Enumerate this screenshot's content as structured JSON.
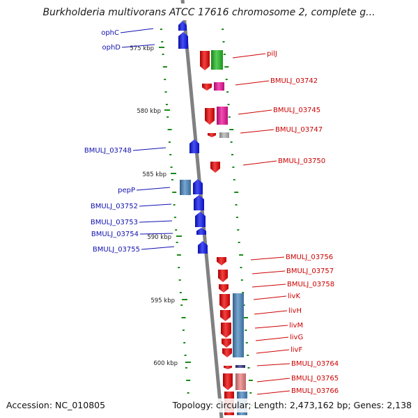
{
  "title": "Burkholderia multivorans ATCC 17616 chromosome 2, complete g...",
  "footer": {
    "accession": "Accession: NC_010805",
    "topology": "Topology: circular; Length: 2,473,162 bp; Genes: 2,138"
  },
  "colors": {
    "backbone": "#808080",
    "tick": "#1a8a1a",
    "left_label": "#1010b0",
    "right_label": "#cc0000",
    "red": "#ee0000",
    "blue": "#0a14ee",
    "green": "#22bb22",
    "pink": "#ee1199",
    "gray": "#b4b4b4",
    "steel": "#4a88c0",
    "lightred": "#ee8080",
    "navy": "#303080"
  },
  "ticks": [
    "575 kbp",
    "580 kbp",
    "585 kbp",
    "590 kbp",
    "595 kbp",
    "600 kbp"
  ],
  "left_genes": [
    {
      "label": "ophC",
      "color": "blue"
    },
    {
      "label": "ophD",
      "color": "blue"
    },
    {
      "label": "BMULJ_03748",
      "color": "blue"
    },
    {
      "label": "pepP",
      "color": "blue"
    },
    {
      "label": "BMULJ_03752",
      "color": "blue"
    },
    {
      "label": "BMULJ_03753",
      "color": "blue"
    },
    {
      "label": "BMULJ_03754",
      "color": "blue"
    },
    {
      "label": "BMULJ_03755",
      "color": "blue"
    }
  ],
  "right_genes": [
    {
      "label": "pilJ",
      "color": "red"
    },
    {
      "label": "BMULJ_03742",
      "color": "red"
    },
    {
      "label": "BMULJ_03745",
      "color": "red"
    },
    {
      "label": "BMULJ_03747",
      "color": "red"
    },
    {
      "label": "BMULJ_03750",
      "color": "red"
    },
    {
      "label": "BMULJ_03756",
      "color": "red"
    },
    {
      "label": "BMULJ_03757",
      "color": "red"
    },
    {
      "label": "BMULJ_03758",
      "color": "red"
    },
    {
      "label": "livK",
      "color": "red"
    },
    {
      "label": "livH",
      "color": "red"
    },
    {
      "label": "livM",
      "color": "red"
    },
    {
      "label": "livG",
      "color": "red"
    },
    {
      "label": "livF",
      "color": "red"
    },
    {
      "label": "BMULJ_03764",
      "color": "red"
    },
    {
      "label": "BMULJ_03765",
      "color": "red"
    },
    {
      "label": "BMULJ_03766",
      "color": "red"
    }
  ]
}
